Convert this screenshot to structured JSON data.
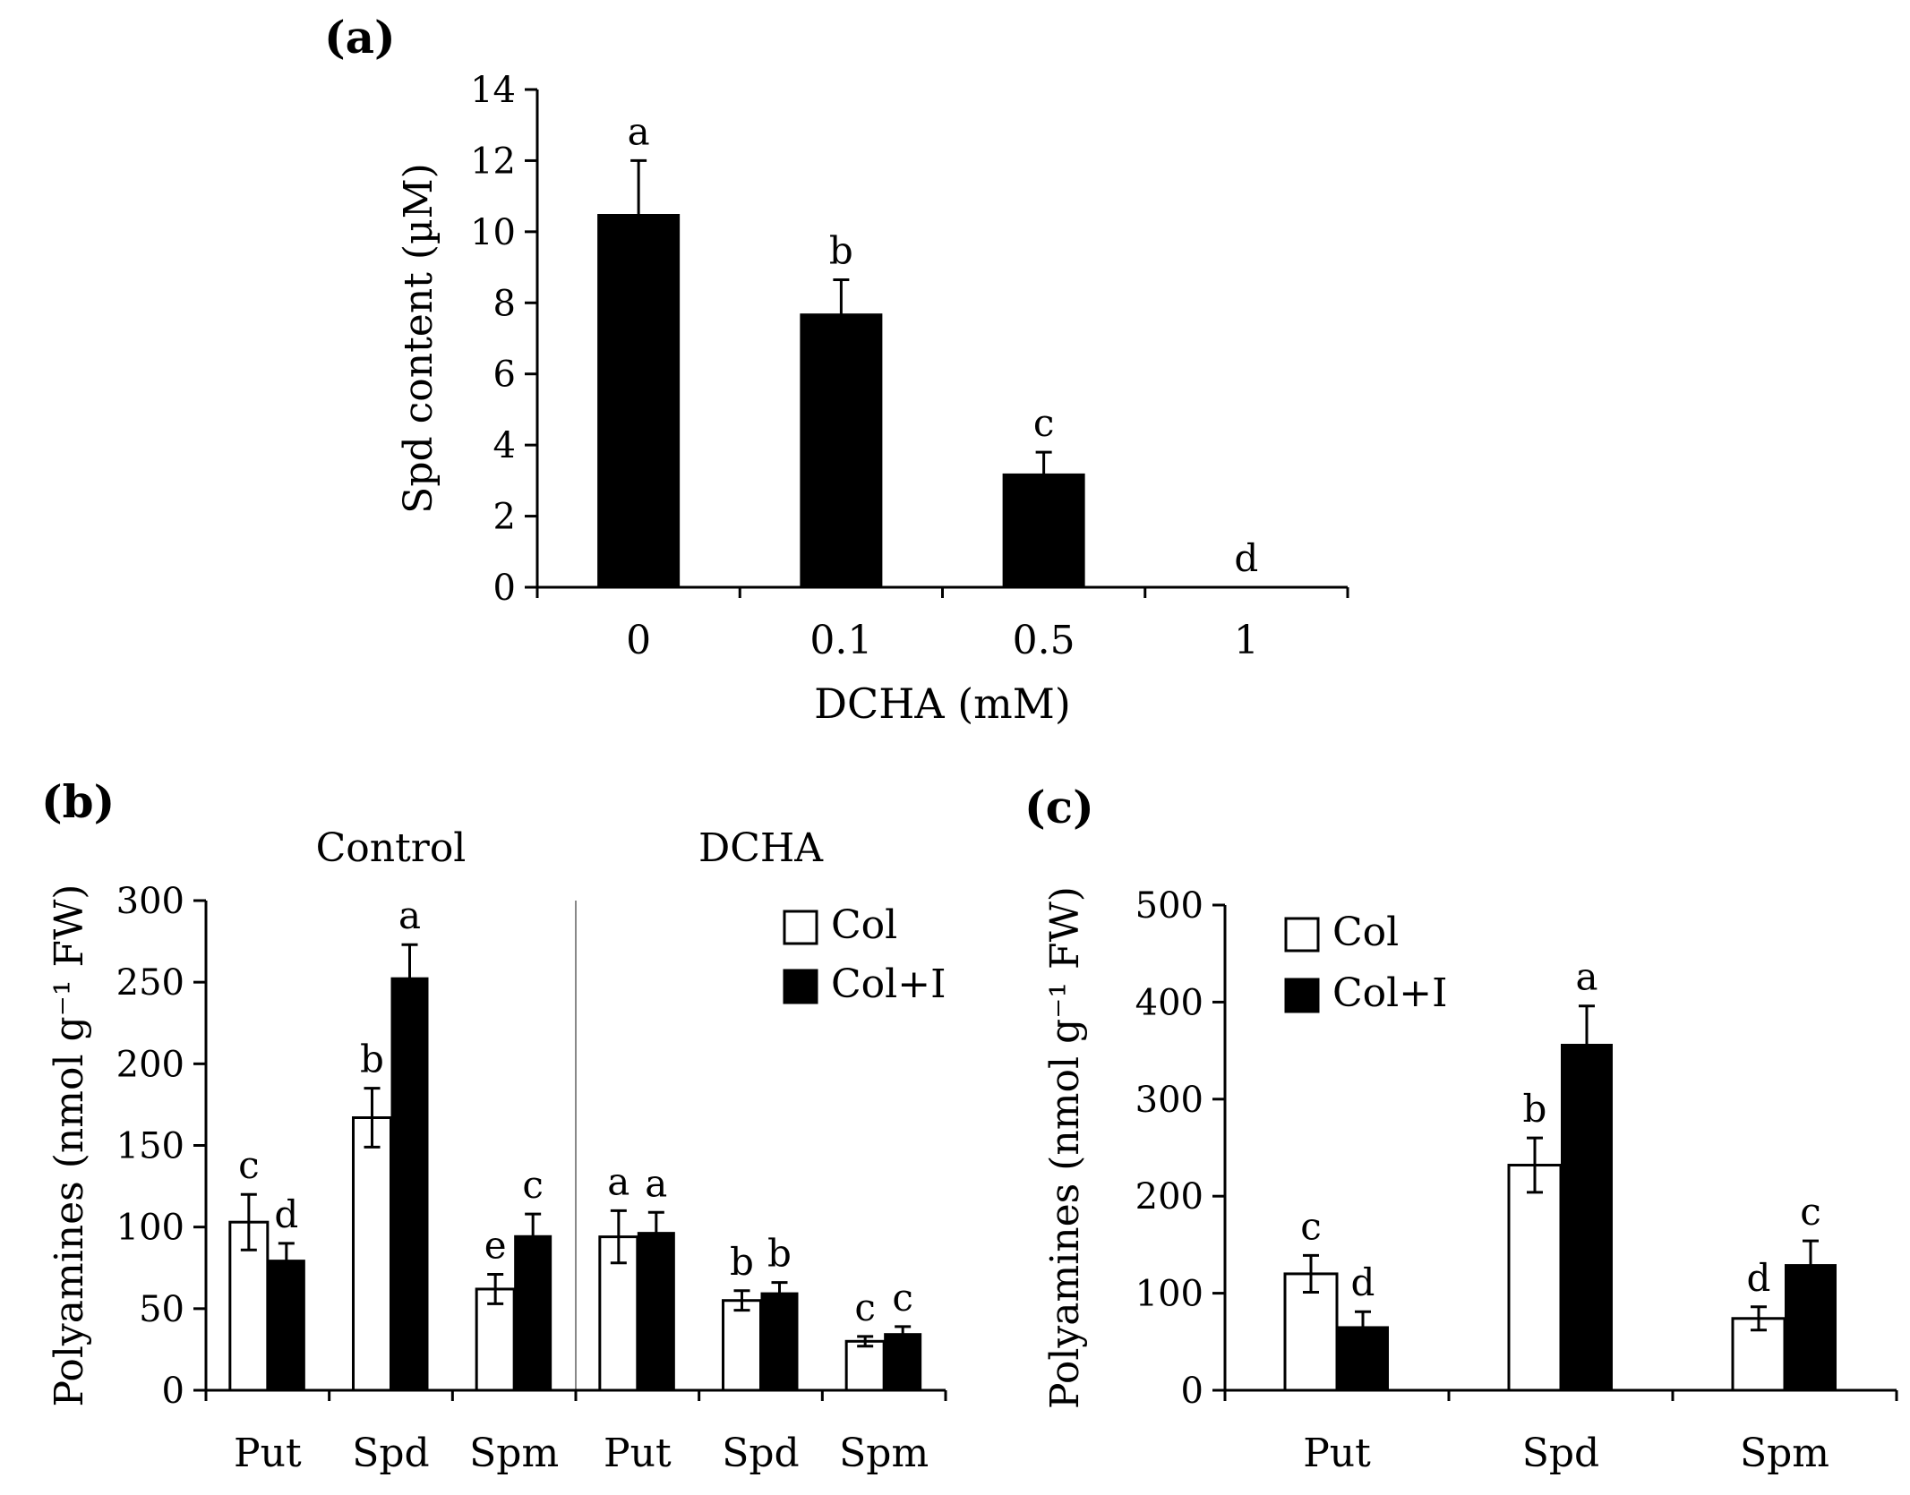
{
  "panels": {
    "a": {
      "label": "(a)"
    },
    "b": {
      "label": "(b)"
    },
    "c": {
      "label": "(c)"
    }
  },
  "colors": {
    "filled_bar": "#000000",
    "open_bar": "#ffffff",
    "axis": "#000000",
    "divider": "#888888",
    "background": "#ffffff"
  },
  "chart_data": [
    {
      "id": "a",
      "type": "bar",
      "title": "",
      "ylabel": "Spd content (µM)",
      "xlabel": "DCHA (mM)",
      "categories": [
        "0",
        "0.1",
        "0.5",
        "1"
      ],
      "values": [
        10.5,
        7.7,
        3.2,
        0
      ],
      "errors": [
        1.5,
        0.95,
        0.6,
        0
      ],
      "sig_letters": [
        "a",
        "b",
        "c",
        "d"
      ],
      "ylim": [
        0,
        14
      ],
      "yticks": [
        0,
        2,
        4,
        6,
        8,
        10,
        12,
        14
      ],
      "grid": false
    },
    {
      "id": "b",
      "type": "grouped-bar",
      "title": "",
      "ylabel": "Polyamines (nmol g⁻¹ FW)",
      "xlabel": "",
      "group_headers": [
        {
          "label": "Control",
          "span": [
            0,
            2
          ]
        },
        {
          "label": "DCHA",
          "span": [
            3,
            5
          ]
        }
      ],
      "categories": [
        "Put",
        "Spd",
        "Spm",
        "Put",
        "Spd",
        "Spm"
      ],
      "series": [
        {
          "name": "Col",
          "style": "open",
          "values": [
            103,
            167,
            62,
            94,
            55,
            30
          ],
          "errors": [
            17,
            18,
            9,
            16,
            6,
            3
          ],
          "sig_letters": [
            "c",
            "b",
            "e",
            "a",
            "b",
            "c"
          ]
        },
        {
          "name": "Col+I",
          "style": "filled",
          "values": [
            80,
            253,
            95,
            97,
            60,
            35
          ],
          "errors": [
            10,
            20,
            13,
            12,
            6,
            4
          ],
          "sig_letters": [
            "d",
            "a",
            "c",
            "a",
            "b",
            "c"
          ]
        }
      ],
      "ylim": [
        0,
        300
      ],
      "yticks": [
        0,
        50,
        100,
        150,
        200,
        250,
        300
      ],
      "divider_after_index": 2,
      "legend": [
        {
          "label": "Col",
          "style": "open"
        },
        {
          "label": "Col+I",
          "style": "filled"
        }
      ],
      "legend_position": "top-right",
      "grid": false
    },
    {
      "id": "c",
      "type": "grouped-bar",
      "title": "",
      "ylabel": "Polyamines (nmol g⁻¹ FW)",
      "xlabel": "",
      "categories": [
        "Put",
        "Spd",
        "Spm"
      ],
      "series": [
        {
          "name": "Col",
          "style": "open",
          "values": [
            120,
            232,
            74
          ],
          "errors": [
            19,
            28,
            12
          ],
          "sig_letters": [
            "c",
            "b",
            "d"
          ]
        },
        {
          "name": "Col+I",
          "style": "filled",
          "values": [
            66,
            357,
            130
          ],
          "errors": [
            15,
            39,
            24
          ],
          "sig_letters": [
            "d",
            "a",
            "c"
          ]
        }
      ],
      "ylim": [
        0,
        500
      ],
      "yticks": [
        0,
        100,
        200,
        300,
        400,
        500
      ],
      "legend": [
        {
          "label": "Col",
          "style": "open"
        },
        {
          "label": "Col+I",
          "style": "filled"
        }
      ],
      "legend_position": "top-left",
      "grid": false
    }
  ]
}
